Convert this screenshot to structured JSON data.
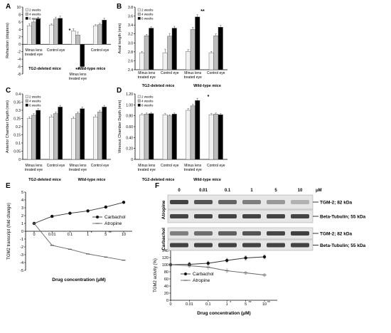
{
  "panel_labels": {
    "A": "A",
    "B": "B",
    "C": "C",
    "D": "D",
    "E": "E",
    "F": "F"
  },
  "colors": {
    "w2": "#f2f2f2",
    "w4": "#bdbdbd",
    "w6": "#000000",
    "line_up": "#333333",
    "line_down": "#666666",
    "band": "#3a3a3a"
  },
  "legend_weeks": [
    "2 weeks",
    "4 weeks",
    "6 weeks"
  ],
  "group_labels": {
    "tg2": "TG2-deleted mice",
    "wt": "Wild-type mice",
    "minus_lens": "Minus lens",
    "treated_eye": "treated eye",
    "control_eye": "Control eye"
  },
  "chart_data": [
    {
      "panel": "A",
      "type": "bar",
      "ylabel": "Refraction (diopters)",
      "ylim": [
        -8,
        10
      ],
      "yticks": [
        "-8",
        "-6",
        "-4",
        "-2",
        "0",
        "2",
        "4",
        "6",
        "8",
        "10"
      ],
      "categories": [
        "Minus lens treated eye (TG2-deleted)",
        "Control eye (TG2-deleted)",
        "Minus lens treated eye (Wild-type)",
        "Control eye (Wild-type)"
      ],
      "series": [
        {
          "name": "2 weeks",
          "values": [
            5.0,
            5.2,
            3.6,
            5.0
          ]
        },
        {
          "name": "4 weeks",
          "values": [
            6.0,
            6.8,
            2.5,
            5.3
          ]
        },
        {
          "name": "6 weeks",
          "values": [
            6.8,
            7.0,
            -6.0,
            6.5
          ]
        }
      ],
      "errors": [
        [
          0.5,
          0.3,
          0.6,
          0.3
        ],
        [
          0.6,
          0.5,
          0.8,
          0.4
        ],
        [
          0.5,
          0.6,
          0.8,
          0.5
        ]
      ],
      "annotations": [
        "*",
        "**"
      ]
    },
    {
      "panel": "B",
      "type": "bar",
      "ylabel": "Axial length (mm)",
      "ylim": [
        2.4,
        3.8
      ],
      "yticks": [
        "2.4",
        "2.6",
        "2.8",
        "3.0",
        "3.2",
        "3.4",
        "3.6",
        "3.8"
      ],
      "categories": [
        "Minus lens treated eye (TG2-deleted)",
        "Control eye (TG2-deleted)",
        "Minus lens treated eye (Wild-type)",
        "Control eye (Wild-type)"
      ],
      "series": [
        {
          "name": "2 weeks",
          "values": [
            2.78,
            2.78,
            2.81,
            2.78
          ]
        },
        {
          "name": "4 weeks",
          "values": [
            3.16,
            3.15,
            3.3,
            3.16
          ]
        },
        {
          "name": "6 weeks",
          "values": [
            3.33,
            3.33,
            3.58,
            3.35
          ]
        }
      ],
      "errors": [
        [
          0.03,
          0.08,
          0.04,
          0.03
        ],
        [
          0.03,
          0.06,
          0.05,
          0.04
        ],
        [
          0.03,
          0.04,
          0.05,
          0.04
        ]
      ],
      "annotations": [
        "*",
        "**"
      ]
    },
    {
      "panel": "C",
      "type": "bar",
      "ylabel": "Anterior Chamber Depth (mm)",
      "ylim": [
        0,
        0.4
      ],
      "yticks": [
        "0",
        "0.05",
        "0.1",
        "0.15",
        "0.2",
        "0.25",
        "0.3",
        "0.35",
        "0.4"
      ],
      "categories": [
        "Minus lens treated eye (TG2-deleted)",
        "Control eye (TG2-deleted)",
        "Minus lens treated eye (Wild-type)",
        "Control eye (Wild-type)"
      ],
      "series": [
        {
          "name": "2 weeks",
          "values": [
            0.25,
            0.26,
            0.25,
            0.26
          ]
        },
        {
          "name": "4 weeks",
          "values": [
            0.27,
            0.28,
            0.28,
            0.29
          ]
        },
        {
          "name": "6 weeks",
          "values": [
            0.3,
            0.32,
            0.31,
            0.32
          ]
        }
      ],
      "errors": [
        [
          0.01,
          0.01,
          0.01,
          0.01
        ],
        [
          0.01,
          0.01,
          0.01,
          0.01
        ],
        [
          0.01,
          0.01,
          0.01,
          0.01
        ]
      ]
    },
    {
      "panel": "D",
      "type": "bar",
      "ylabel": "Vitreous Chamber Depth (mm)",
      "ylim": [
        0,
        1.2
      ],
      "yticks": [
        "0",
        "0.20",
        "0.40",
        "0.60",
        "0.80",
        "1.00",
        "1.20"
      ],
      "categories": [
        "Minus lens treated eye (TG2-deleted)",
        "Control eye (TG2-deleted)",
        "Minus lens treated eye (Wild-type)",
        "Control eye (Wild-type)"
      ],
      "series": [
        {
          "name": "2 weeks",
          "values": [
            0.82,
            0.82,
            0.9,
            0.82
          ]
        },
        {
          "name": "4 weeks",
          "values": [
            0.83,
            0.8,
            0.98,
            0.83
          ]
        },
        {
          "name": "6 weeks",
          "values": [
            0.84,
            0.83,
            1.08,
            0.82
          ]
        }
      ],
      "errors": [
        [
          0.02,
          0.02,
          0.03,
          0.02
        ],
        [
          0.02,
          0.02,
          0.03,
          0.02
        ],
        [
          0.02,
          0.02,
          0.04,
          0.02
        ]
      ],
      "annotations": [
        "*"
      ]
    },
    {
      "panel": "E",
      "type": "line",
      "ylabel": "TGM2 transcript (fold change)",
      "xlabel": "Drug concentration (μM)",
      "ylim": [
        -5,
        5
      ],
      "yticks": [
        "-5",
        "-4",
        "-3",
        "-2",
        "-1",
        "0",
        "1",
        "2",
        "3",
        "4",
        "5"
      ],
      "x": [
        "0",
        "0.01",
        "0.1",
        "1",
        "5",
        "10"
      ],
      "x_annotations": [
        "",
        "",
        "",
        "*",
        "**",
        ""
      ],
      "series": [
        {
          "name": "Carbachol",
          "values": [
            1.0,
            1.9,
            2.3,
            2.6,
            3.1,
            3.7
          ]
        },
        {
          "name": "Atropine",
          "values": [
            1.0,
            -1.8,
            -2.3,
            -2.9,
            -3.3,
            -3.7
          ]
        }
      ]
    },
    {
      "panel": "F",
      "type": "line",
      "ylabel": "TGM2 activity (%)",
      "xlabel": "Drug concentration (μM)",
      "ylim": [
        0,
        140
      ],
      "yticks": [
        "0",
        "20",
        "40",
        "60",
        "80",
        "100",
        "120",
        "140"
      ],
      "x": [
        "0",
        "0.01",
        "0.1",
        "1",
        "5",
        "10"
      ],
      "x_annotations": [
        "",
        "",
        "",
        "*",
        "**",
        "**"
      ],
      "series": [
        {
          "name": "Carbachol",
          "values": [
            100,
            101,
            104,
            112,
            119,
            122
          ]
        },
        {
          "name": "Atropine",
          "values": [
            100,
            97,
            93,
            83,
            77,
            71
          ]
        }
      ],
      "errors": [
        [
          5,
          6,
          6,
          6,
          6,
          6
        ],
        [
          3,
          4,
          5,
          5,
          4,
          4
        ]
      ]
    }
  ],
  "blot": {
    "concentrations": [
      "0",
      "0.01",
      "0.1",
      "1",
      "5",
      "10"
    ],
    "unit": "μM",
    "row_labels": [
      "TGM-2; 82 kDa",
      "Beta-Tubulin; 55 kDa",
      "TGM-2; 82 kDa",
      "Beta-Tubulin; 55 kDa"
    ],
    "drugs": [
      "Atropine",
      "Carbachol"
    ],
    "intensities": {
      "atropine_tgm2": [
        0.95,
        0.85,
        0.75,
        0.6,
        0.45,
        0.3
      ],
      "atropine_tubulin": [
        0.95,
        0.95,
        0.95,
        0.95,
        0.95,
        0.95
      ],
      "carbachol_tgm2": [
        0.6,
        0.7,
        0.78,
        0.85,
        0.92,
        0.97
      ],
      "carbachol_tubulin": [
        0.95,
        0.95,
        0.95,
        0.95,
        0.95,
        0.95
      ]
    }
  }
}
